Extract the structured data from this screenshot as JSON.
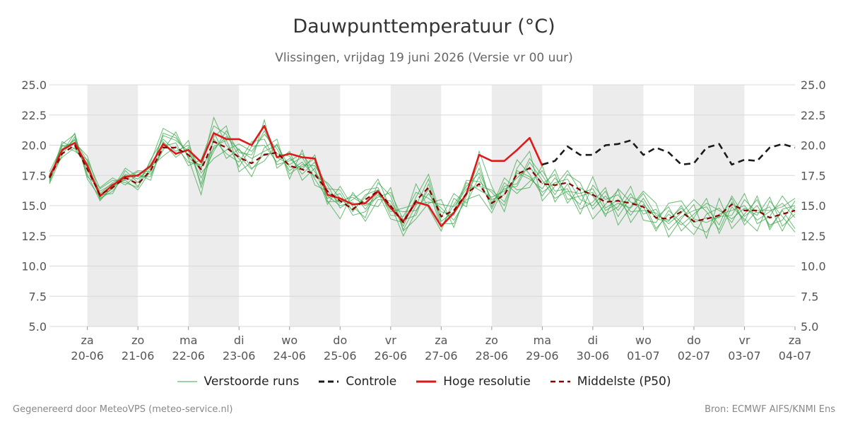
{
  "title": "Dauwpunttemperatuur (°C)",
  "subtitle": "Vlissingen, vrijdag 19 juni 2026 (Versie vr 00 uur)",
  "footer_left": "Gegenereerd door MeteoVPS (meteo-service.nl)",
  "footer_right": "Bron: ECMWF AIFS/KNMI Ens",
  "legend": [
    {
      "label": "Verstoorde runs",
      "color": "#3aa64a",
      "style": "thin"
    },
    {
      "label": "Controle",
      "color": "#1a1a1a",
      "style": "dashed"
    },
    {
      "label": "Hoge resolutie",
      "color": "#dd1a1a",
      "style": "solid"
    },
    {
      "label": "Middelste (P50)",
      "color": "#8b0000",
      "style": "dashed"
    }
  ],
  "chart_data": {
    "type": "line",
    "title": "Dauwpunttemperatuur (°C)",
    "subtitle": "Vlissingen, vrijdag 19 juni 2026 (Versie vr 00 uur)",
    "ylim": [
      5.0,
      25.0
    ],
    "yticks": [
      "5.0",
      "7.5",
      "10.0",
      "12.5",
      "15.0",
      "17.5",
      "20.0",
      "22.5",
      "25.0"
    ],
    "x_day_offset_range": [
      -0.75,
      14.0
    ],
    "x_ticks": [
      {
        "day": "za",
        "date": "20-06"
      },
      {
        "day": "zo",
        "date": "21-06"
      },
      {
        "day": "ma",
        "date": "22-06"
      },
      {
        "day": "di",
        "date": "23-06"
      },
      {
        "day": "wo",
        "date": "24-06"
      },
      {
        "day": "do",
        "date": "25-06"
      },
      {
        "day": "vr",
        "date": "26-06"
      },
      {
        "day": "za",
        "date": "27-06"
      },
      {
        "day": "zo",
        "date": "28-06"
      },
      {
        "day": "ma",
        "date": "29-06"
      },
      {
        "day": "di",
        "date": "30-06"
      },
      {
        "day": "wo",
        "date": "01-07"
      },
      {
        "day": "do",
        "date": "02-07"
      },
      {
        "day": "vr",
        "date": "03-07"
      },
      {
        "day": "za",
        "date": "04-07"
      }
    ],
    "shaded_weekend_days": [
      0,
      2,
      4,
      6,
      8,
      10,
      12
    ],
    "step_days": 0.25,
    "series": [
      {
        "name": "Hoge resolutie",
        "color": "#dd1a1a",
        "x_start": -0.75,
        "values": [
          17.4,
          19.6,
          20.2,
          18.3,
          15.8,
          16.7,
          17.4,
          17.5,
          18.3,
          20.1,
          19.3,
          19.6,
          18.6,
          21.0,
          20.5,
          20.5,
          20.0,
          21.6,
          19.0,
          19.3,
          19.0,
          18.9,
          15.9,
          15.6,
          15.1,
          15.2,
          16.2,
          14.8,
          13.7,
          15.3,
          15.0,
          13.3,
          14.4,
          16.0,
          19.2,
          18.7,
          18.7,
          19.6,
          20.6,
          18.3
        ]
      },
      {
        "name": "Controle",
        "color": "#1a1a1a",
        "x_start": 9.0,
        "values": [
          18.4,
          18.7,
          19.9,
          19.2,
          19.2,
          20.0,
          20.1,
          20.4,
          19.2,
          19.8,
          19.4,
          18.4,
          18.5,
          19.8,
          20.1,
          18.4,
          18.8,
          18.7,
          19.8,
          20.1,
          19.8
        ]
      },
      {
        "name": "Middelste (P50)",
        "color": "#8b0000",
        "x_start": -0.75,
        "values": [
          17.3,
          19.3,
          20.0,
          18.0,
          15.9,
          16.5,
          17.3,
          16.8,
          17.9,
          19.8,
          19.8,
          19.2,
          18.0,
          20.3,
          19.8,
          19.0,
          18.5,
          19.2,
          19.4,
          18.3,
          18.0,
          17.6,
          16.2,
          15.4,
          14.7,
          15.5,
          16.2,
          15.0,
          13.6,
          15.4,
          16.5,
          14.1,
          14.6,
          16.0,
          16.8,
          15.2,
          15.9,
          17.6,
          18.1,
          16.8,
          16.7,
          16.9,
          16.3,
          15.9,
          15.3,
          15.4,
          15.2,
          14.9,
          14.0,
          13.9,
          14.5,
          13.7,
          13.9,
          14.2,
          15.1,
          14.6,
          14.6,
          14.0,
          14.3,
          14.6
        ]
      }
    ],
    "ensemble": {
      "name": "Verstoorde runs",
      "color": "#3aa64a",
      "x_start": -0.75,
      "members": [
        [
          17.0,
          19.5,
          20.5,
          17.9,
          16.2,
          16.8,
          17.1,
          16.3,
          17.9,
          20.8,
          20.4,
          19.5,
          17.3,
          19.5,
          21.2,
          19.4,
          19.2,
          21.2,
          19.0,
          18.4,
          19.0,
          17.2,
          15.6,
          16.0,
          14.2,
          14.5,
          15.9,
          15.1,
          12.5,
          14.5,
          16.4,
          13.2,
          15.1,
          16.6,
          17.7,
          15.5,
          15.9,
          18.8,
          17.6,
          15.8,
          17.3,
          16.0,
          15.1,
          17.4,
          14.8,
          15.5,
          14.2,
          15.6,
          13.9,
          13.7,
          15.0,
          13.3,
          12.8,
          14.3,
          14.6,
          15.0,
          13.8,
          14.5,
          15.2,
          14.0
        ],
        [
          17.5,
          19.0,
          19.8,
          18.5,
          15.6,
          16.2,
          17.6,
          17.2,
          18.2,
          19.1,
          19.9,
          18.6,
          18.4,
          21.1,
          18.9,
          19.7,
          18.1,
          18.7,
          20.1,
          17.6,
          18.4,
          18.3,
          16.7,
          14.8,
          15.5,
          16.3,
          16.5,
          14.2,
          14.1,
          16.1,
          15.6,
          14.8,
          13.8,
          15.5,
          15.9,
          14.4,
          16.6,
          16.8,
          18.9,
          17.5,
          15.9,
          17.6,
          16.9,
          14.7,
          15.8,
          14.6,
          16.0,
          14.3,
          14.7,
          13.0,
          14.1,
          14.6,
          14.9,
          13.4,
          15.8,
          14.1,
          15.0,
          13.4,
          13.8,
          15.4
        ],
        [
          16.9,
          20.1,
          20.9,
          17.4,
          16.5,
          17.3,
          16.7,
          17.6,
          17.1,
          20.3,
          19.2,
          20.4,
          16.5,
          19.9,
          20.4,
          18.2,
          19.9,
          20.0,
          18.6,
          19.5,
          17.1,
          18.1,
          15.1,
          16.6,
          14.9,
          14.0,
          16.9,
          15.8,
          13.0,
          15.0,
          17.2,
          13.7,
          14.5,
          17.1,
          17.0,
          16.1,
          15.0,
          17.7,
          17.2,
          16.4,
          18.0,
          15.5,
          15.8,
          16.1,
          14.1,
          16.4,
          15.3,
          14.9,
          12.9,
          14.6,
          13.6,
          12.6,
          14.3,
          14.8,
          13.6,
          15.5,
          14.4,
          14.9,
          12.9,
          14.9
        ],
        [
          17.8,
          19.9,
          20.2,
          19.1,
          15.9,
          16.0,
          17.9,
          16.9,
          18.6,
          21.4,
          20.8,
          19.0,
          18.0,
          22.3,
          20.0,
          18.9,
          17.4,
          19.8,
          20.5,
          17.2,
          19.6,
          16.7,
          16.2,
          15.2,
          15.9,
          15.2,
          14.9,
          16.5,
          12.9,
          13.9,
          15.2,
          15.5,
          13.2,
          16.1,
          18.6,
          14.9,
          17.3,
          16.3,
          16.5,
          18.3,
          15.3,
          16.8,
          14.7,
          15.3,
          16.5,
          13.4,
          14.9,
          16.2,
          15.2,
          12.4,
          13.9,
          15.1,
          12.3,
          15.6,
          13.1,
          14.3,
          15.5,
          13.2,
          14.6,
          13.1
        ],
        [
          16.8,
          19.2,
          20.7,
          17.6,
          15.4,
          16.6,
          17.2,
          17.8,
          17.6,
          19.6,
          21.1,
          18.9,
          15.9,
          20.7,
          21.6,
          17.8,
          18.6,
          22.1,
          18.1,
          18.9,
          18.0,
          19.2,
          15.4,
          13.9,
          16.1,
          14.7,
          16.1,
          13.9,
          13.6,
          16.8,
          14.8,
          12.9,
          15.6,
          14.9,
          19.5,
          16.6,
          14.5,
          18.1,
          19.5,
          15.4,
          16.6,
          17.9,
          16.2,
          13.9,
          15.1,
          16.3,
          13.6,
          15.1,
          14.0,
          14.9,
          12.9,
          14.0,
          15.6,
          12.7,
          14.9,
          13.9,
          12.9,
          15.4,
          14.1,
          12.8
        ],
        [
          17.2,
          20.0,
          19.5,
          18.8,
          16.4,
          17.1,
          16.9,
          16.5,
          18.8,
          20.5,
          19.5,
          20.0,
          17.7,
          18.9,
          19.6,
          20.1,
          19.5,
          20.9,
          19.7,
          17.9,
          18.6,
          17.4,
          16.9,
          15.6,
          14.6,
          15.7,
          17.2,
          14.7,
          14.5,
          14.6,
          16.0,
          14.5,
          14.2,
          16.9,
          16.3,
          15.7,
          16.2,
          17.3,
          18.2,
          16.8,
          17.6,
          15.2,
          16.5,
          15.8,
          14.3,
          14.9,
          16.6,
          13.8,
          13.6,
          15.2,
          15.4,
          13.9,
          13.6,
          14.1,
          14.2,
          16.0,
          13.5,
          14.1,
          15.8,
          14.4
        ],
        [
          17.6,
          19.4,
          21.0,
          17.2,
          15.7,
          16.4,
          18.1,
          17.4,
          17.4,
          19.9,
          20.2,
          18.3,
          18.8,
          21.6,
          20.9,
          19.1,
          18.0,
          19.3,
          19.3,
          19.1,
          17.6,
          18.6,
          15.8,
          15.0,
          15.3,
          13.7,
          15.5,
          15.4,
          13.3,
          15.7,
          17.6,
          14.0,
          16.0,
          15.2,
          17.4,
          14.7,
          16.9,
          16.0,
          17.0,
          17.9,
          16.2,
          16.4,
          14.3,
          16.7,
          15.5,
          15.9,
          14.5,
          14.6,
          14.4,
          13.5,
          14.4,
          15.5,
          14.5,
          13.0,
          15.3,
          13.7,
          15.8,
          13.0,
          14.7,
          15.0
        ],
        [
          17.1,
          20.3,
          19.7,
          18.2,
          16.0,
          16.9,
          17.5,
          16.6,
          18.1,
          20.2,
          19.0,
          19.8,
          16.8,
          20.5,
          19.3,
          18.6,
          20.3,
          20.5,
          18.4,
          18.7,
          19.3,
          17.8,
          16.4,
          16.3,
          14.5,
          15.9,
          16.3,
          14.5,
          14.8,
          15.1,
          15.3,
          15.1,
          14.9,
          16.4,
          16.6,
          16.3,
          15.3,
          17.9,
          17.4,
          16.1,
          16.9,
          17.2,
          15.5,
          15.0,
          16.2,
          14.1,
          15.7,
          15.3,
          13.1,
          14.3,
          13.4,
          14.3,
          15.2,
          14.6,
          13.9,
          14.8,
          14.2,
          15.7,
          13.3,
          14.3
        ],
        [
          17.4,
          19.7,
          20.4,
          18.7,
          15.5,
          16.5,
          17.3,
          17.9,
          17.8,
          21.0,
          20.6,
          19.2,
          18.2,
          19.7,
          20.7,
          19.6,
          18.9,
          19.5,
          20.0,
          18.2,
          18.2,
          18.9,
          15.3,
          15.4,
          15.7,
          15.0,
          15.7,
          16.1,
          13.8,
          14.2,
          16.8,
          13.5,
          13.5,
          15.8,
          18.1,
          15.3,
          16.4,
          16.6,
          18.6,
          17.1,
          15.6,
          16.2,
          16.0,
          16.4,
          14.6,
          15.2,
          14.8,
          16.0,
          14.2,
          13.8,
          14.8,
          13.6,
          14.0,
          14.0,
          15.6,
          13.4,
          14.6,
          14.6,
          14.9,
          15.6
        ]
      ]
    }
  }
}
